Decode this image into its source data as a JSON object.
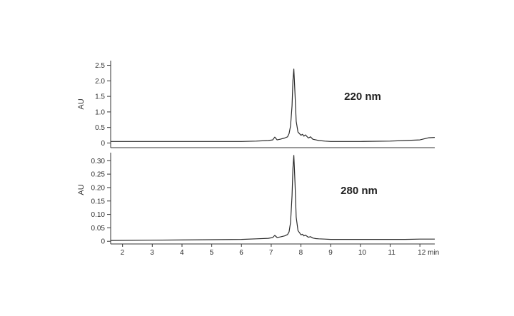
{
  "chart_data": [
    {
      "type": "line",
      "label": "220 nm",
      "ylabel": "AU",
      "xlim": [
        1.6,
        12.5
      ],
      "ylim": [
        -0.15,
        2.65
      ],
      "yticks": [
        0,
        0.5,
        1.0,
        1.5,
        2.0,
        2.5
      ],
      "ytick_labels": [
        "0",
        "0.5",
        "1.0",
        "1.5",
        "2.0",
        "2.5"
      ],
      "grid": false,
      "series": [
        {
          "x": [
            1.6,
            3,
            4,
            5,
            6,
            6.5,
            6.9,
            7.05,
            7.12,
            7.2,
            7.3,
            7.45,
            7.55,
            7.6,
            7.65,
            7.7,
            7.73,
            7.76,
            7.8,
            7.84,
            7.9,
            8.0,
            8.05,
            8.1,
            8.15,
            8.25,
            8.32,
            8.4,
            8.5,
            8.6,
            8.8,
            9,
            10,
            11,
            11.5,
            12,
            12.3,
            12.5
          ],
          "y": [
            0.05,
            0.05,
            0.05,
            0.05,
            0.05,
            0.06,
            0.08,
            0.1,
            0.19,
            0.1,
            0.12,
            0.16,
            0.2,
            0.3,
            0.55,
            1.2,
            2.0,
            2.38,
            1.6,
            0.7,
            0.35,
            0.25,
            0.28,
            0.22,
            0.26,
            0.16,
            0.2,
            0.12,
            0.1,
            0.08,
            0.06,
            0.05,
            0.05,
            0.06,
            0.08,
            0.1,
            0.17,
            0.18
          ]
        }
      ]
    },
    {
      "type": "line",
      "label": "280 nm",
      "ylabel": "AU",
      "xlim": [
        1.6,
        12.5
      ],
      "ylim": [
        -0.01,
        0.33
      ],
      "xlabel": "min",
      "yticks": [
        0,
        0.05,
        0.1,
        0.15,
        0.2,
        0.25,
        0.3
      ],
      "ytick_labels": [
        "0",
        "0.05",
        "0.10",
        "0.15",
        "0.20",
        "0.25",
        "0.30"
      ],
      "xticks": [
        2,
        3,
        4,
        5,
        6,
        7,
        8,
        9,
        10,
        11,
        12
      ],
      "xtick_labels": [
        "2",
        "3",
        "4",
        "5",
        "6",
        "7",
        "8",
        "9",
        "10",
        "11",
        "12 min"
      ],
      "grid": false,
      "series": [
        {
          "x": [
            1.6,
            3,
            4,
            5,
            6,
            6.5,
            6.9,
            7.05,
            7.12,
            7.2,
            7.3,
            7.45,
            7.55,
            7.6,
            7.65,
            7.7,
            7.73,
            7.76,
            7.8,
            7.84,
            7.9,
            8.0,
            8.05,
            8.1,
            8.15,
            8.25,
            8.32,
            8.4,
            8.5,
            8.6,
            8.8,
            9,
            10,
            11,
            11.5,
            12,
            12.3,
            12.5
          ],
          "y": [
            0.003,
            0.004,
            0.005,
            0.006,
            0.007,
            0.009,
            0.011,
            0.014,
            0.022,
            0.014,
            0.016,
            0.02,
            0.025,
            0.035,
            0.07,
            0.17,
            0.27,
            0.32,
            0.22,
            0.09,
            0.04,
            0.024,
            0.026,
            0.02,
            0.023,
            0.015,
            0.017,
            0.012,
            0.01,
            0.009,
            0.008,
            0.007,
            0.007,
            0.007,
            0.007,
            0.008,
            0.008,
            0.008
          ]
        }
      ]
    }
  ]
}
